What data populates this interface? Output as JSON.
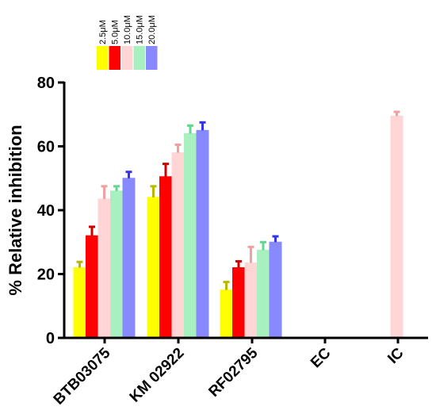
{
  "chart_data": {
    "type": "bar",
    "title": "",
    "xlabel": "",
    "ylabel": "% Relative inhibition",
    "ylim": [
      0,
      80
    ],
    "yticks": [
      0,
      20,
      40,
      60,
      80
    ],
    "grid": false,
    "legend_position": "top-left",
    "categories": [
      "BTB03075",
      "KM 02922",
      "RF02795",
      "EC",
      "IC"
    ],
    "series": [
      {
        "name": "2.5μM",
        "color": "#ffff00",
        "values": [
          22,
          44,
          15,
          0,
          0
        ],
        "errors": [
          1.8,
          3.5,
          2.5,
          0,
          0
        ]
      },
      {
        "name": "5.0μM",
        "color": "#ff0000",
        "values": [
          32,
          50.5,
          22,
          0,
          0
        ],
        "errors": [
          2.8,
          4,
          2,
          0,
          0
        ]
      },
      {
        "name": "10.0μM",
        "color": "#ffd5d5",
        "values": [
          43.5,
          58,
          23.5,
          0,
          69.5
        ],
        "errors": [
          4,
          2.5,
          5,
          0,
          1.3
        ]
      },
      {
        "name": "15.0μM",
        "color": "#a8f0c0",
        "values": [
          46,
          64,
          27.5,
          0,
          0
        ],
        "errors": [
          1.5,
          2.5,
          2.5,
          0,
          0
        ]
      },
      {
        "name": "20.0μM",
        "color": "#8888ff",
        "values": [
          50,
          65,
          30,
          0,
          0
        ],
        "errors": [
          2,
          2.5,
          1.8,
          0,
          0
        ]
      }
    ]
  }
}
